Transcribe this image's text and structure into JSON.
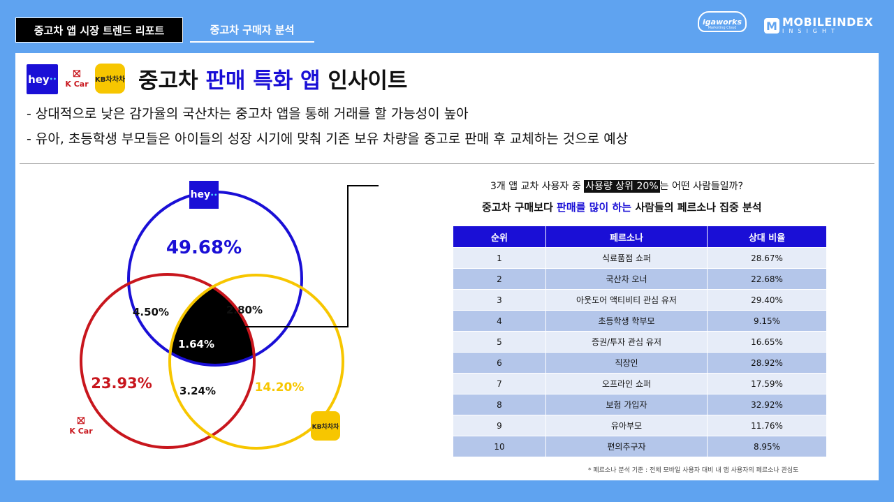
{
  "header": {
    "tab_active": "중고차 앱 시장 트렌드 리포트",
    "tab_buyer": "중고차 구매자 분석",
    "igaworks_logo": "igaworks",
    "igaworks_sub": "Marketing Cloud",
    "mobileindex_title": "MOBILEINDEX",
    "mobileindex_sub": "INSIGHT"
  },
  "logos": {
    "hey": "hey",
    "kcar": "K Car",
    "kb": "KB차차차"
  },
  "title": {
    "prefix": "중고차",
    "highlight": "판매 특화 앱",
    "suffix": "인사이트"
  },
  "bullets": [
    "- 상대적으로 낮은 감가율의 국산차는 중고차 앱을 통해 거래를 할 가능성이 높아",
    "- 유아, 초등학생 부모들은 아이들의 성장 시기에 맞춰 기존 보유 차량을 중고로 판매 후 교체하는 것으로 예상"
  ],
  "chart_data": [
    {
      "type": "venn",
      "sets": [
        "hey",
        "K Car",
        "KB차차차"
      ],
      "regions": {
        "hey_only": "49.68%",
        "kcar_only": "23.93%",
        "kb_only": "14.20%",
        "hey_kcar": "4.50%",
        "hey_kb": "2.80%",
        "kcar_kb": "3.24%",
        "all_three": "1.64%"
      },
      "colors": {
        "hey": "#1a0fd6",
        "kcar": "#c8161d",
        "kb": "#f7c600"
      }
    },
    {
      "type": "table",
      "columns": [
        "순위",
        "페르소나",
        "상대 비율"
      ],
      "rows": [
        [
          "1",
          "식료품점 쇼퍼",
          "28.67%"
        ],
        [
          "2",
          "국산차 오너",
          "22.68%"
        ],
        [
          "3",
          "아웃도어 액티비티 관심 유저",
          "29.40%"
        ],
        [
          "4",
          "초등학생 학부모",
          "9.15%"
        ],
        [
          "5",
          "증권/투자 관심 유저",
          "16.65%"
        ],
        [
          "6",
          "직장인",
          "28.92%"
        ],
        [
          "7",
          "오프라인 쇼퍼",
          "17.59%"
        ],
        [
          "8",
          "보험 가입자",
          "32.92%"
        ],
        [
          "9",
          "유아부모",
          "11.76%"
        ],
        [
          "10",
          "편의추구자",
          "8.95%"
        ]
      ]
    }
  ],
  "question": {
    "pre": "3개 앱 교차 사용자 중 ",
    "boxed": "사용량 상위 20%",
    "post": "는 어떤 사람들일까?"
  },
  "subtitle": {
    "pre": "중고차 구매보다 ",
    "highlight": "판매를 많이 하는",
    "post": " 사람들의 페르소나 집중 분석"
  },
  "footnote": "* 페르소나 분석 기준 : 전체 모바일 사용자 대비 내 앱 사용자의 페르소나 관심도"
}
